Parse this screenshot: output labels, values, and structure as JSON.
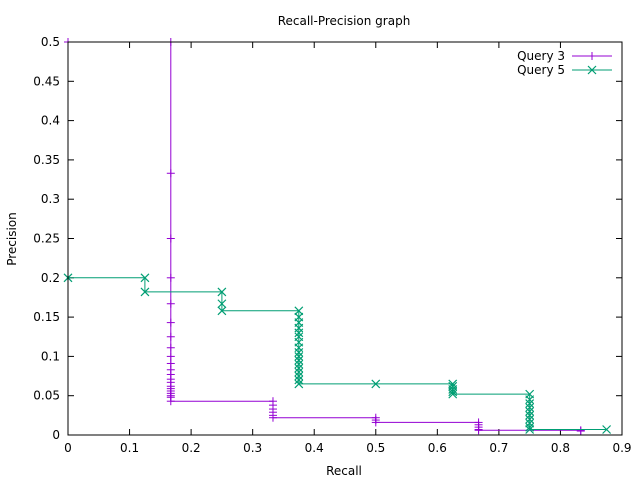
{
  "chart_data": {
    "type": "line",
    "title": "Recall-Precision graph",
    "xlabel": "Recall",
    "ylabel": "Precision",
    "xlim": [
      0,
      0.9
    ],
    "ylim": [
      0,
      0.5
    ],
    "xticks": [
      "0",
      "0.1",
      "0.2",
      "0.3",
      "0.4",
      "0.5",
      "0.6",
      "0.7",
      "0.8",
      "0.9"
    ],
    "xtick_values": [
      0,
      0.1,
      0.2,
      0.3,
      0.4,
      0.5,
      0.6,
      0.7,
      0.8,
      0.9
    ],
    "yticks": [
      "0",
      "0.05",
      "0.1",
      "0.15",
      "0.2",
      "0.25",
      "0.3",
      "0.35",
      "0.4",
      "0.45",
      "0.5"
    ],
    "ytick_values": [
      0,
      0.05,
      0.1,
      0.15,
      0.2,
      0.25,
      0.3,
      0.35,
      0.4,
      0.45,
      0.5
    ],
    "grid": false,
    "legend_position": "top-right",
    "series": [
      {
        "name": "Query 3",
        "color": "#9400d3",
        "marker": "plus",
        "points": [
          [
            0,
            0.5
          ],
          [
            0.167,
            0.5
          ],
          [
            0.167,
            0.333
          ],
          [
            0.167,
            0.25
          ],
          [
            0.167,
            0.2
          ],
          [
            0.167,
            0.167
          ],
          [
            0.167,
            0.143
          ],
          [
            0.167,
            0.125
          ],
          [
            0.167,
            0.111
          ],
          [
            0.167,
            0.1
          ],
          [
            0.167,
            0.091
          ],
          [
            0.167,
            0.083
          ],
          [
            0.167,
            0.077
          ],
          [
            0.167,
            0.071
          ],
          [
            0.167,
            0.067
          ],
          [
            0.167,
            0.062
          ],
          [
            0.167,
            0.059
          ],
          [
            0.167,
            0.056
          ],
          [
            0.167,
            0.053
          ],
          [
            0.167,
            0.05
          ],
          [
            0.167,
            0.048
          ],
          [
            0.167,
            0.043
          ],
          [
            0.333,
            0.043
          ],
          [
            0.333,
            0.038
          ],
          [
            0.333,
            0.033
          ],
          [
            0.333,
            0.029
          ],
          [
            0.333,
            0.025
          ],
          [
            0.333,
            0.022
          ],
          [
            0.5,
            0.022
          ],
          [
            0.5,
            0.019
          ],
          [
            0.5,
            0.016
          ],
          [
            0.667,
            0.016
          ],
          [
            0.667,
            0.013
          ],
          [
            0.667,
            0.01
          ],
          [
            0.667,
            0.007
          ],
          [
            0.667,
            0.006
          ],
          [
            0.833,
            0.006
          ],
          [
            0.833,
            0.005
          ]
        ]
      },
      {
        "name": "Query 5",
        "color": "#009e73",
        "marker": "cross",
        "points": [
          [
            0,
            0.2
          ],
          [
            0.125,
            0.2
          ],
          [
            0.125,
            0.182
          ],
          [
            0.25,
            0.182
          ],
          [
            0.25,
            0.167
          ],
          [
            0.25,
            0.158
          ],
          [
            0.375,
            0.158
          ],
          [
            0.375,
            0.15
          ],
          [
            0.375,
            0.143
          ],
          [
            0.375,
            0.136
          ],
          [
            0.375,
            0.13
          ],
          [
            0.375,
            0.125
          ],
          [
            0.375,
            0.118
          ],
          [
            0.375,
            0.111
          ],
          [
            0.375,
            0.105
          ],
          [
            0.375,
            0.1
          ],
          [
            0.375,
            0.095
          ],
          [
            0.375,
            0.09
          ],
          [
            0.375,
            0.085
          ],
          [
            0.375,
            0.08
          ],
          [
            0.375,
            0.075
          ],
          [
            0.375,
            0.07
          ],
          [
            0.375,
            0.065
          ],
          [
            0.5,
            0.065
          ],
          [
            0.625,
            0.065
          ],
          [
            0.625,
            0.062
          ],
          [
            0.625,
            0.058
          ],
          [
            0.625,
            0.055
          ],
          [
            0.625,
            0.052
          ],
          [
            0.75,
            0.052
          ],
          [
            0.75,
            0.045
          ],
          [
            0.75,
            0.04
          ],
          [
            0.75,
            0.035
          ],
          [
            0.75,
            0.03
          ],
          [
            0.75,
            0.025
          ],
          [
            0.75,
            0.02
          ],
          [
            0.75,
            0.015
          ],
          [
            0.75,
            0.01
          ],
          [
            0.75,
            0.007
          ],
          [
            0.875,
            0.007
          ]
        ]
      }
    ]
  }
}
